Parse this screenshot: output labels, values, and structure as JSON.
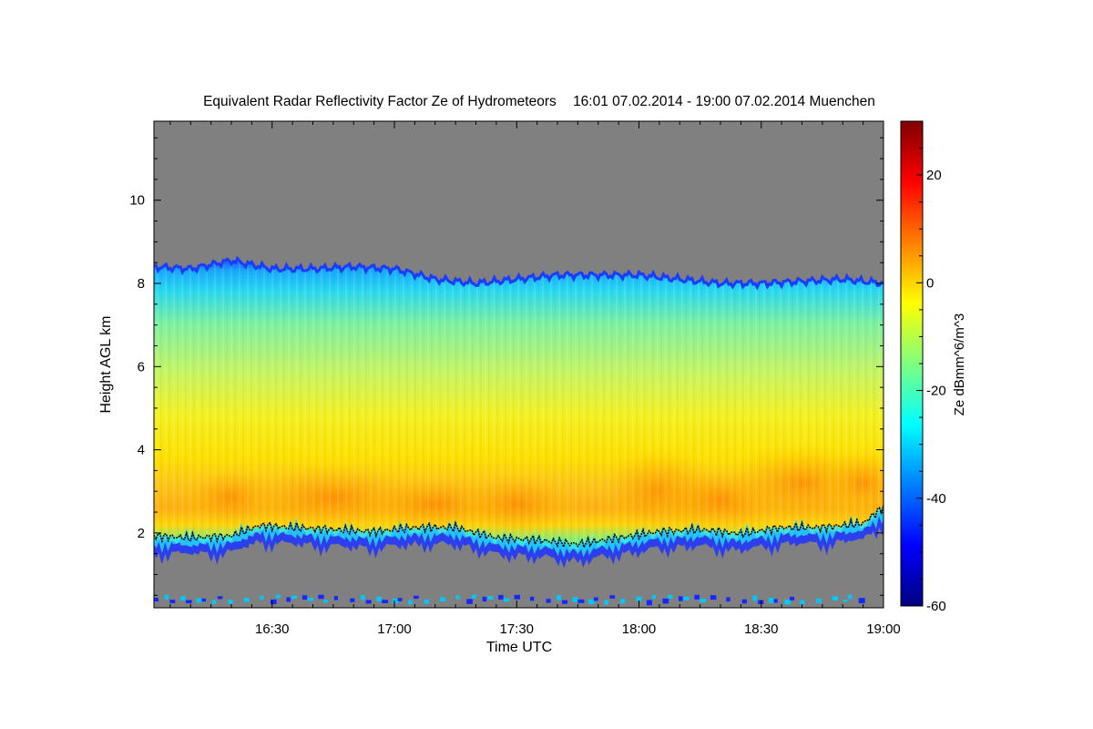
{
  "chart_data": {
    "type": "heatmap",
    "title": "Equivalent Radar Reflectivity Factor Ze of Hydrometeors",
    "time_range": "16:01 07.02.2014 - 19:00 07.02.2014",
    "location": "Muenchen",
    "xlabel": "Time UTC",
    "ylabel": "Height AGL km",
    "x_unit": "minutes after 16:00 UTC",
    "xlim": [
      1,
      180
    ],
    "ylim": [
      0.2,
      11.9
    ],
    "x_ticks": [
      {
        "value": 30,
        "label": "16:30"
      },
      {
        "value": 60,
        "label": "17:00"
      },
      {
        "value": 90,
        "label": "17:30"
      },
      {
        "value": 120,
        "label": "18:00"
      },
      {
        "value": 150,
        "label": "18:30"
      },
      {
        "value": 180,
        "label": "19:00"
      }
    ],
    "y_ticks": [
      {
        "value": 2,
        "label": "2"
      },
      {
        "value": 4,
        "label": "4"
      },
      {
        "value": 6,
        "label": "6"
      },
      {
        "value": 8,
        "label": "8"
      },
      {
        "value": 10,
        "label": "10"
      }
    ],
    "colorbar": {
      "label": "Ze dBmm^6/m^3",
      "range": [
        -60,
        30
      ],
      "ticks": [
        {
          "value": -60,
          "label": "-60"
        },
        {
          "value": -40,
          "label": "-40"
        },
        {
          "value": -20,
          "label": "-20"
        },
        {
          "value": 0,
          "label": "0"
        },
        {
          "value": 20,
          "label": "20"
        }
      ],
      "colors": [
        "#00007f",
        "#0000ff",
        "#007fff",
        "#00ffff",
        "#7fff7f",
        "#ffff00",
        "#ff7f00",
        "#ff0000",
        "#7f0000"
      ]
    },
    "no_signal_color": "#808080",
    "cloud_top_km": [
      {
        "t": 1,
        "h": 8.4
      },
      {
        "t": 10,
        "h": 8.35
      },
      {
        "t": 20,
        "h": 8.55
      },
      {
        "t": 30,
        "h": 8.35
      },
      {
        "t": 40,
        "h": 8.35
      },
      {
        "t": 50,
        "h": 8.4
      },
      {
        "t": 60,
        "h": 8.35
      },
      {
        "t": 70,
        "h": 8.1
      },
      {
        "t": 80,
        "h": 8.0
      },
      {
        "t": 90,
        "h": 8.1
      },
      {
        "t": 100,
        "h": 8.2
      },
      {
        "t": 110,
        "h": 8.2
      },
      {
        "t": 120,
        "h": 8.2
      },
      {
        "t": 130,
        "h": 8.1
      },
      {
        "t": 140,
        "h": 8.0
      },
      {
        "t": 150,
        "h": 8.0
      },
      {
        "t": 160,
        "h": 8.05
      },
      {
        "t": 170,
        "h": 8.1
      },
      {
        "t": 180,
        "h": 8.0
      }
    ],
    "cloud_base_km": [
      {
        "t": 1,
        "h": 1.8
      },
      {
        "t": 10,
        "h": 1.75
      },
      {
        "t": 20,
        "h": 1.8
      },
      {
        "t": 27,
        "h": 2.05
      },
      {
        "t": 35,
        "h": 2.0
      },
      {
        "t": 45,
        "h": 1.95
      },
      {
        "t": 55,
        "h": 1.9
      },
      {
        "t": 65,
        "h": 2.0
      },
      {
        "t": 75,
        "h": 2.0
      },
      {
        "t": 85,
        "h": 1.75
      },
      {
        "t": 95,
        "h": 1.7
      },
      {
        "t": 105,
        "h": 1.6
      },
      {
        "t": 115,
        "h": 1.75
      },
      {
        "t": 125,
        "h": 1.9
      },
      {
        "t": 135,
        "h": 1.95
      },
      {
        "t": 145,
        "h": 1.85
      },
      {
        "t": 155,
        "h": 2.0
      },
      {
        "t": 165,
        "h": 2.0
      },
      {
        "t": 175,
        "h": 2.1
      },
      {
        "t": 180,
        "h": 2.5
      }
    ],
    "high_reflectivity_band_km": [
      2.5,
      3.2
    ]
  }
}
